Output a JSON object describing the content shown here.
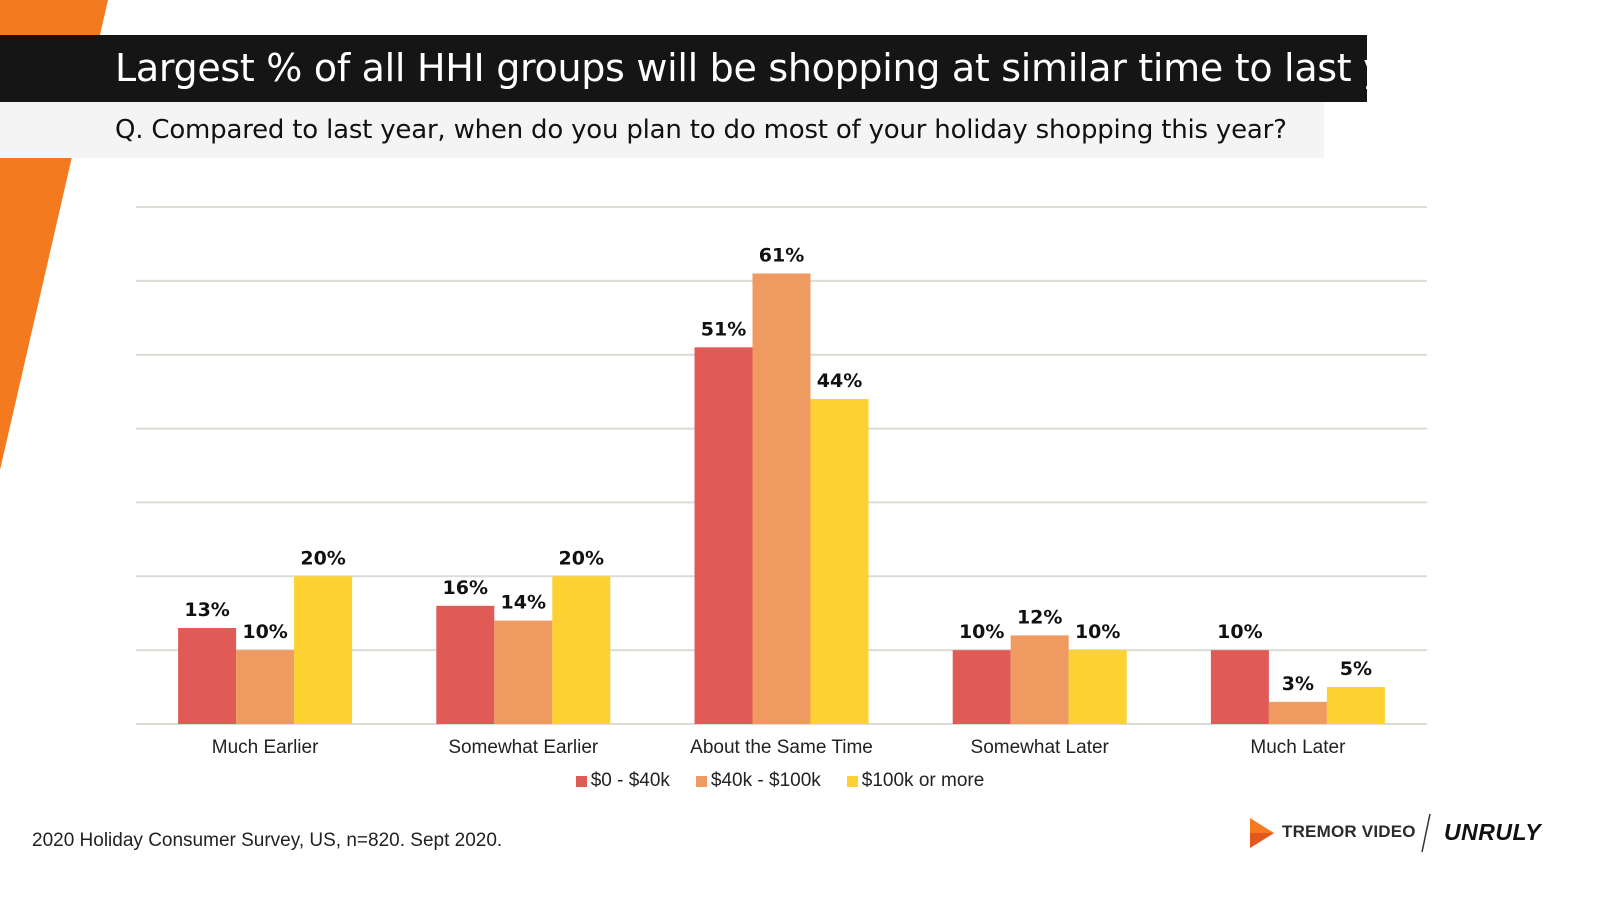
{
  "title": "Largest % of all HHI groups will be shopping at similar time to last year",
  "question": "Q. Compared to last year, when do you plan to do most of your holiday shopping this year?",
  "footnote": "2020 Holiday Consumer Survey, US, n=820. Sept 2020.",
  "logos": {
    "tremor": "TREMOR VIDEO",
    "unruly": "UNRULY"
  },
  "colors": {
    "accent": "#F47A20",
    "title_bg": "#151515",
    "question_bg": "#F4F4F4",
    "grid": "#DCDCD4"
  },
  "chart_data": {
    "type": "bar",
    "title": "",
    "xlabel": "",
    "ylabel": "",
    "ylim": [
      0,
      70
    ],
    "gridlines": [
      0,
      10,
      20,
      30,
      40,
      50,
      60,
      70
    ],
    "legend_position": "bottom",
    "categories": [
      "Much Earlier",
      "Somewhat Earlier",
      "About the Same Time",
      "Somewhat Later",
      "Much Later"
    ],
    "series": [
      {
        "name": "$0 - $40k",
        "color": "#E05B55",
        "values": [
          13,
          16,
          51,
          10,
          10
        ],
        "labels": [
          "13%",
          "16%",
          "51%",
          "10%",
          "10%"
        ]
      },
      {
        "name": "$40k - $100k",
        "color": "#EE9A60",
        "values": [
          10,
          14,
          61,
          12,
          3
        ],
        "labels": [
          "10%",
          "14%",
          "61%",
          "12%",
          "3%"
        ]
      },
      {
        "name": "$100k or more",
        "color": "#FDD132",
        "values": [
          20,
          20,
          44,
          10,
          5
        ],
        "labels": [
          "20%",
          "20%",
          "44%",
          "10%",
          "5%"
        ]
      }
    ]
  }
}
